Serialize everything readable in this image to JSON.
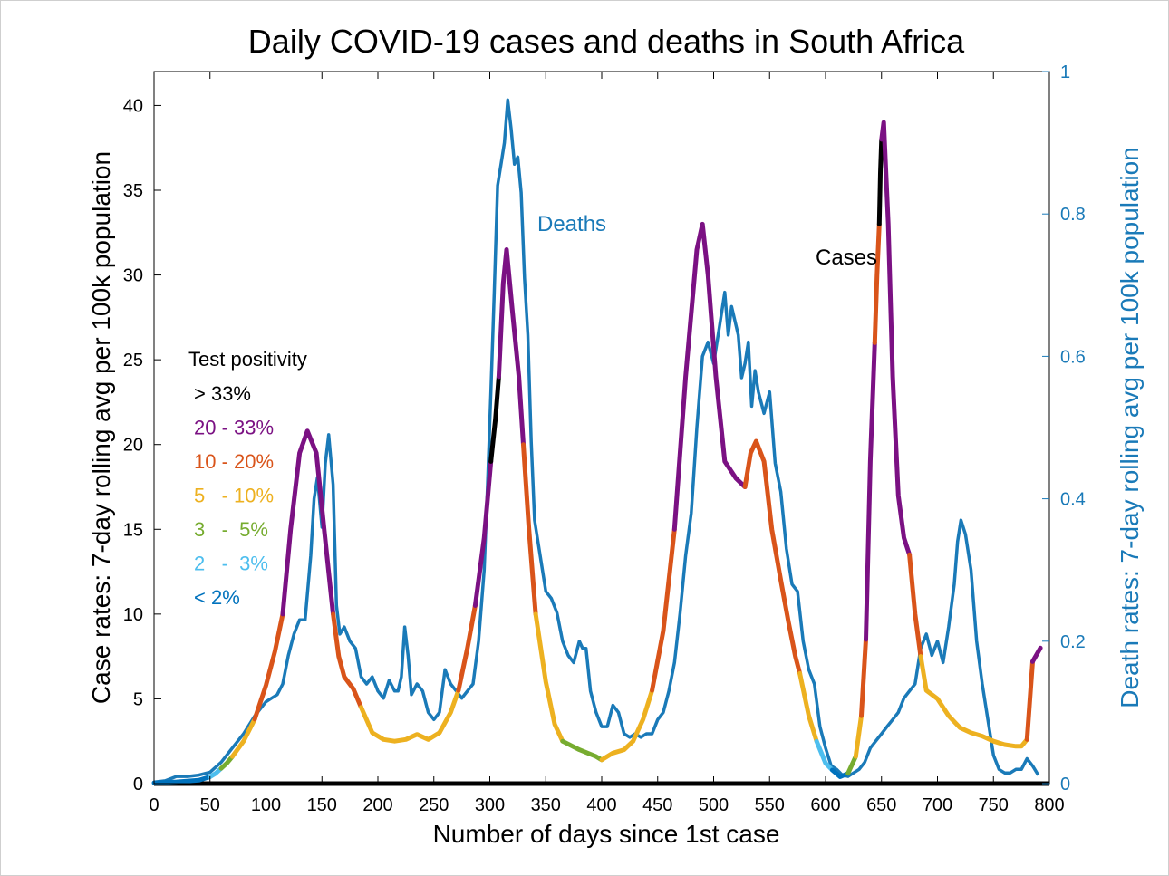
{
  "chart_data": {
    "type": "line",
    "title": "Daily COVID-19 cases and deaths in South Africa",
    "xlabel": "Number of days since 1st case",
    "ylabel_left": "Case rates: 7-day rolling avg per 100k population",
    "ylabel_right": "Death rates: 7-day rolling avg per 100k population",
    "xlim": [
      0,
      800
    ],
    "ylim_left": [
      0,
      42
    ],
    "ylim_right": [
      0,
      1
    ],
    "x_ticks": [
      "0",
      "50",
      "100",
      "150",
      "200",
      "250",
      "300",
      "350",
      "400",
      "450",
      "500",
      "550",
      "600",
      "650",
      "700",
      "750",
      "800"
    ],
    "y_left_ticks": [
      "0",
      "5",
      "10",
      "15",
      "20",
      "25",
      "30",
      "35",
      "40"
    ],
    "y_right_ticks": [
      "0",
      "0.2",
      "0.4",
      "0.6",
      "0.8",
      "1"
    ],
    "grid": false,
    "annotations": [
      {
        "text": "Deaths",
        "x": 310,
        "y": 33,
        "color": "#1a7ab8"
      },
      {
        "text": "Cases",
        "x": 583,
        "y": 31,
        "color": "#000000"
      }
    ],
    "legend": {
      "placement": "left",
      "title": "Test positivity",
      "items": [
        {
          "label": "> 33%",
          "color": "#000000"
        },
        {
          "label": "20 - 33%",
          "color": "#7b1183"
        },
        {
          "label": "10 - 20%",
          "color": "#d9541a"
        },
        {
          "label": "5   - 10%",
          "color": "#edb120"
        },
        {
          "label": "3   -  5%",
          "color": "#77ac30"
        },
        {
          "label": "2   -  3%",
          "color": "#4dbeee"
        },
        {
          "label": "< 2%",
          "color": "#0072bd"
        }
      ]
    },
    "series": [
      {
        "name": "Cases",
        "axis": "left",
        "segments": [
          {
            "color": "#0072bd",
            "x": [
              0,
              20,
              40,
              50
            ],
            "y": [
              0.05,
              0.1,
              0.2,
              0.4
            ]
          },
          {
            "color": "#4dbeee",
            "x": [
              50,
              55,
              60
            ],
            "y": [
              0.4,
              0.6,
              0.9
            ]
          },
          {
            "color": "#77ac30",
            "x": [
              60,
              65,
              70
            ],
            "y": [
              0.9,
              1.2,
              1.6
            ]
          },
          {
            "color": "#edb120",
            "x": [
              70,
              80,
              90
            ],
            "y": [
              1.6,
              2.5,
              3.8
            ]
          },
          {
            "color": "#d9541a",
            "x": [
              90,
              100,
              108,
              115
            ],
            "y": [
              3.8,
              5.8,
              7.8,
              10.0
            ]
          },
          {
            "color": "#7b1183",
            "x": [
              115,
              122,
              130,
              137,
              145,
              152,
              160
            ],
            "y": [
              10.0,
              15.0,
              19.5,
              20.8,
              19.5,
              15.0,
              10.0
            ]
          },
          {
            "color": "#d9541a",
            "x": [
              160,
              165,
              170,
              178,
              185
            ],
            "y": [
              10.0,
              7.5,
              6.3,
              5.6,
              4.5
            ]
          },
          {
            "color": "#edb120",
            "x": [
              185,
              195,
              205,
              215,
              225,
              235,
              245,
              255
            ],
            "y": [
              4.5,
              3.0,
              2.6,
              2.5,
              2.6,
              2.9,
              2.6,
              3.0
            ]
          },
          {
            "color": "#edb120",
            "x": [
              255,
              265,
              272
            ],
            "y": [
              3.0,
              4.2,
              5.5
            ]
          },
          {
            "color": "#d9541a",
            "x": [
              272,
              280,
              287
            ],
            "y": [
              5.5,
              8.0,
              10.5
            ]
          },
          {
            "color": "#7b1183",
            "x": [
              287,
              295,
              301
            ],
            "y": [
              10.5,
              14.5,
              19.0
            ]
          },
          {
            "color": "#000000",
            "x": [
              301,
              305,
              308
            ],
            "y": [
              19.0,
              21.5,
              24.0
            ]
          },
          {
            "color": "#7b1183",
            "x": [
              308,
              312,
              315,
              320,
              326,
              330
            ],
            "y": [
              24.0,
              29.5,
              31.5,
              28.0,
              24.0,
              20.0
            ]
          },
          {
            "color": "#d9541a",
            "x": [
              330,
              335,
              341
            ],
            "y": [
              20.0,
              15.0,
              10.0
            ]
          },
          {
            "color": "#edb120",
            "x": [
              341,
              350,
              358,
              365
            ],
            "y": [
              10.0,
              6.0,
              3.5,
              2.5
            ]
          },
          {
            "color": "#77ac30",
            "x": [
              365,
              380,
              395,
              400
            ],
            "y": [
              2.5,
              2.0,
              1.6,
              1.4
            ]
          },
          {
            "color": "#edb120",
            "x": [
              400,
              410,
              420,
              428
            ],
            "y": [
              1.4,
              1.8,
              2.0,
              2.5
            ]
          },
          {
            "color": "#edb120",
            "x": [
              428,
              437,
              445
            ],
            "y": [
              2.5,
              3.8,
              5.5
            ]
          },
          {
            "color": "#d9541a",
            "x": [
              445,
              455,
              465
            ],
            "y": [
              5.5,
              9.0,
              15.0
            ]
          },
          {
            "color": "#7b1183",
            "x": [
              465,
              475,
              485,
              490,
              495,
              502,
              510,
              520,
              528
            ],
            "y": [
              15.0,
              24.0,
              31.5,
              33.0,
              30.0,
              24.0,
              19.0,
              18.0,
              17.5
            ]
          },
          {
            "color": "#d9541a",
            "x": [
              528,
              533,
              538,
              545,
              552,
              560,
              567,
              573,
              577
            ],
            "y": [
              17.5,
              19.5,
              20.2,
              19.0,
              15.0,
              12.0,
              9.5,
              7.5,
              6.5
            ]
          },
          {
            "color": "#edb120",
            "x": [
              577,
              585,
              592
            ],
            "y": [
              6.5,
              4.0,
              2.5
            ]
          },
          {
            "color": "#4dbeee",
            "x": [
              592,
              600,
              606
            ],
            "y": [
              2.5,
              1.2,
              0.8
            ]
          },
          {
            "color": "#0072bd",
            "x": [
              606,
              613,
              620
            ],
            "y": [
              0.8,
              0.4,
              0.6
            ]
          },
          {
            "color": "#77ac30",
            "x": [
              620,
              627
            ],
            "y": [
              0.6,
              1.6
            ]
          },
          {
            "color": "#edb120",
            "x": [
              627,
              632
            ],
            "y": [
              1.6,
              4.0
            ]
          },
          {
            "color": "#d9541a",
            "x": [
              632,
              636
            ],
            "y": [
              4.0,
              8.5
            ]
          },
          {
            "color": "#7b1183",
            "x": [
              636,
              640,
              644
            ],
            "y": [
              8.5,
              19.0,
              26.0
            ]
          },
          {
            "color": "#d9541a",
            "x": [
              644,
              646,
              648
            ],
            "y": [
              26.0,
              30.0,
              33.0
            ]
          },
          {
            "color": "#000000",
            "x": [
              648,
              649,
              650
            ],
            "y": [
              33.0,
              36.0,
              38.0
            ]
          },
          {
            "color": "#7b1183",
            "x": [
              650,
              652,
              656,
              660,
              665,
              670,
              675
            ],
            "y": [
              38.0,
              39.0,
              33.0,
              24.0,
              17.0,
              14.5,
              13.5
            ]
          },
          {
            "color": "#d9541a",
            "x": [
              675,
              680,
              685
            ],
            "y": [
              13.5,
              10.0,
              7.5
            ]
          },
          {
            "color": "#edb120",
            "x": [
              685,
              690,
              700,
              710,
              720,
              730,
              740,
              750,
              760,
              770,
              775,
              780
            ],
            "y": [
              7.5,
              5.5,
              5.0,
              4.0,
              3.3,
              3.0,
              2.8,
              2.5,
              2.3,
              2.2,
              2.2,
              2.6
            ]
          },
          {
            "color": "#d9541a",
            "x": [
              780,
              785
            ],
            "y": [
              2.6,
              7.2
            ]
          },
          {
            "color": "#7b1183",
            "x": [
              785,
              792
            ],
            "y": [
              7.2,
              8.0
            ]
          }
        ]
      },
      {
        "name": "Deaths",
        "axis": "right",
        "color": "#1a7ab8",
        "x": [
          0,
          10,
          20,
          30,
          40,
          50,
          60,
          70,
          80,
          90,
          100,
          105,
          110,
          115,
          120,
          125,
          130,
          135,
          140,
          143,
          146,
          150,
          153,
          156,
          160,
          163,
          166,
          170,
          175,
          180,
          185,
          190,
          195,
          200,
          205,
          210,
          215,
          218,
          221,
          224,
          227,
          230,
          235,
          240,
          245,
          250,
          255,
          260,
          265,
          270,
          275,
          280,
          285,
          290,
          295,
          298,
          301,
          304,
          307,
          310,
          313,
          316,
          319,
          322,
          325,
          328,
          331,
          334,
          337,
          340,
          345,
          350,
          355,
          360,
          365,
          370,
          375,
          380,
          383,
          386,
          390,
          395,
          400,
          405,
          410,
          415,
          420,
          425,
          430,
          435,
          440,
          445,
          450,
          455,
          460,
          465,
          470,
          475,
          480,
          485,
          490,
          495,
          500,
          505,
          510,
          513,
          516,
          519,
          522,
          525,
          528,
          531,
          534,
          537,
          540,
          545,
          550,
          555,
          560,
          565,
          570,
          575,
          580,
          585,
          590,
          595,
          600,
          605,
          610,
          615,
          620,
          625,
          630,
          635,
          640,
          645,
          650,
          655,
          660,
          665,
          670,
          675,
          680,
          685,
          690,
          695,
          700,
          705,
          710,
          715,
          718,
          721,
          725,
          730,
          735,
          740,
          745,
          750,
          755,
          760,
          765,
          770,
          775,
          780,
          785,
          790
        ],
        "y": [
          0.002,
          0.004,
          0.01,
          0.01,
          0.012,
          0.016,
          0.03,
          0.05,
          0.07,
          0.095,
          0.115,
          0.12,
          0.125,
          0.14,
          0.18,
          0.21,
          0.23,
          0.23,
          0.32,
          0.4,
          0.43,
          0.36,
          0.45,
          0.49,
          0.42,
          0.25,
          0.21,
          0.22,
          0.2,
          0.19,
          0.15,
          0.14,
          0.15,
          0.13,
          0.12,
          0.145,
          0.13,
          0.13,
          0.15,
          0.22,
          0.18,
          0.125,
          0.14,
          0.13,
          0.1,
          0.09,
          0.1,
          0.16,
          0.14,
          0.13,
          0.12,
          0.13,
          0.14,
          0.2,
          0.3,
          0.42,
          0.55,
          0.69,
          0.84,
          0.87,
          0.9,
          0.96,
          0.92,
          0.87,
          0.88,
          0.83,
          0.71,
          0.63,
          0.48,
          0.37,
          0.32,
          0.27,
          0.26,
          0.24,
          0.2,
          0.18,
          0.17,
          0.2,
          0.19,
          0.19,
          0.13,
          0.1,
          0.08,
          0.08,
          0.11,
          0.1,
          0.07,
          0.065,
          0.07,
          0.065,
          0.07,
          0.07,
          0.09,
          0.1,
          0.13,
          0.17,
          0.24,
          0.32,
          0.38,
          0.5,
          0.6,
          0.62,
          0.59,
          0.64,
          0.69,
          0.63,
          0.67,
          0.65,
          0.63,
          0.57,
          0.59,
          0.62,
          0.53,
          0.58,
          0.55,
          0.52,
          0.55,
          0.45,
          0.41,
          0.33,
          0.28,
          0.27,
          0.2,
          0.16,
          0.14,
          0.08,
          0.05,
          0.025,
          0.02,
          0.012,
          0.01,
          0.015,
          0.02,
          0.03,
          0.05,
          0.06,
          0.07,
          0.08,
          0.09,
          0.1,
          0.12,
          0.13,
          0.14,
          0.19,
          0.21,
          0.18,
          0.2,
          0.17,
          0.22,
          0.28,
          0.34,
          0.37,
          0.35,
          0.3,
          0.2,
          0.14,
          0.09,
          0.04,
          0.02,
          0.015,
          0.015,
          0.02,
          0.02,
          0.035,
          0.025,
          0.012
        ]
      }
    ]
  }
}
